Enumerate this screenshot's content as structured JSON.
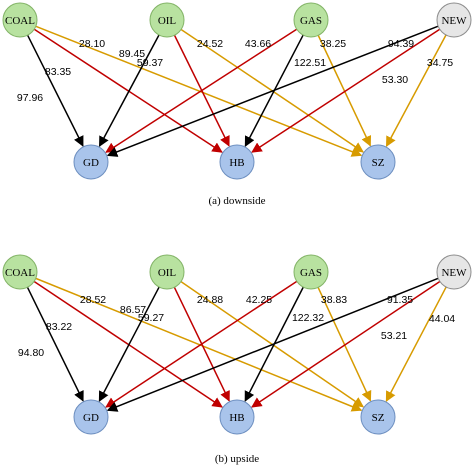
{
  "colors": {
    "source_fill": "#b8e2a0",
    "source_stroke": "#82b366",
    "new_fill": "#e6e6e6",
    "new_stroke": "#8c8c8c",
    "target_fill": "#a9c4eb",
    "target_stroke": "#6c8ebf",
    "edge_black": "#000000",
    "edge_red": "#c00000",
    "edge_orange": "#d79b00"
  },
  "panels": [
    {
      "caption": "(a) downside",
      "sources": [
        {
          "id": "COAL",
          "label": "COAL"
        },
        {
          "id": "OIL",
          "label": "OIL"
        },
        {
          "id": "GAS",
          "label": "GAS"
        },
        {
          "id": "NEW",
          "label": "NEW"
        }
      ],
      "targets": [
        {
          "id": "GD",
          "label": "GD"
        },
        {
          "id": "HB",
          "label": "HB"
        },
        {
          "id": "SZ",
          "label": "SZ"
        }
      ],
      "edges": [
        {
          "from": "COAL",
          "to": "GD",
          "color": "edge_black",
          "label": "97.96"
        },
        {
          "from": "COAL",
          "to": "HB",
          "color": "edge_red",
          "label": "83.35"
        },
        {
          "from": "COAL",
          "to": "SZ",
          "color": "edge_orange",
          "label": "28.10"
        },
        {
          "from": "OIL",
          "to": "GD",
          "color": "edge_black",
          "label": "89.45"
        },
        {
          "from": "OIL",
          "to": "HB",
          "color": "edge_red",
          "label": "59.37"
        },
        {
          "from": "OIL",
          "to": "SZ",
          "color": "edge_orange",
          "label": "24.52"
        },
        {
          "from": "GAS",
          "to": "GD",
          "color": "edge_red",
          "label": "43.66"
        },
        {
          "from": "GAS",
          "to": "HB",
          "color": "edge_black",
          "label": "122.51"
        },
        {
          "from": "GAS",
          "to": "SZ",
          "color": "edge_orange",
          "label": "38.25"
        },
        {
          "from": "NEW",
          "to": "GD",
          "color": "edge_black",
          "label": "94.39"
        },
        {
          "from": "NEW",
          "to": "HB",
          "color": "edge_red",
          "label": "53.30"
        },
        {
          "from": "NEW",
          "to": "SZ",
          "color": "edge_orange",
          "label": "34.75"
        }
      ]
    },
    {
      "caption": "(b) upside",
      "sources": [
        {
          "id": "COAL",
          "label": "COAL"
        },
        {
          "id": "OIL",
          "label": "OIL"
        },
        {
          "id": "GAS",
          "label": "GAS"
        },
        {
          "id": "NEW",
          "label": "NEW"
        }
      ],
      "targets": [
        {
          "id": "GD",
          "label": "GD"
        },
        {
          "id": "HB",
          "label": "HB"
        },
        {
          "id": "SZ",
          "label": "SZ"
        }
      ],
      "edges": [
        {
          "from": "COAL",
          "to": "GD",
          "color": "edge_black",
          "label": "94.80"
        },
        {
          "from": "COAL",
          "to": "HB",
          "color": "edge_red",
          "label": "83.22"
        },
        {
          "from": "COAL",
          "to": "SZ",
          "color": "edge_orange",
          "label": "28.52"
        },
        {
          "from": "OIL",
          "to": "GD",
          "color": "edge_black",
          "label": "86.57"
        },
        {
          "from": "OIL",
          "to": "HB",
          "color": "edge_red",
          "label": "59.27"
        },
        {
          "from": "OIL",
          "to": "SZ",
          "color": "edge_orange",
          "label": "24.88"
        },
        {
          "from": "GAS",
          "to": "GD",
          "color": "edge_red",
          "label": "42.25"
        },
        {
          "from": "GAS",
          "to": "HB",
          "color": "edge_black",
          "label": "122.32"
        },
        {
          "from": "GAS",
          "to": "SZ",
          "color": "edge_orange",
          "label": "38.83"
        },
        {
          "from": "NEW",
          "to": "GD",
          "color": "edge_black",
          "label": "91.35"
        },
        {
          "from": "NEW",
          "to": "HB",
          "color": "edge_red",
          "label": "53.21"
        },
        {
          "from": "NEW",
          "to": "SZ",
          "color": "edge_orange",
          "label": "44.04"
        }
      ]
    }
  ]
}
